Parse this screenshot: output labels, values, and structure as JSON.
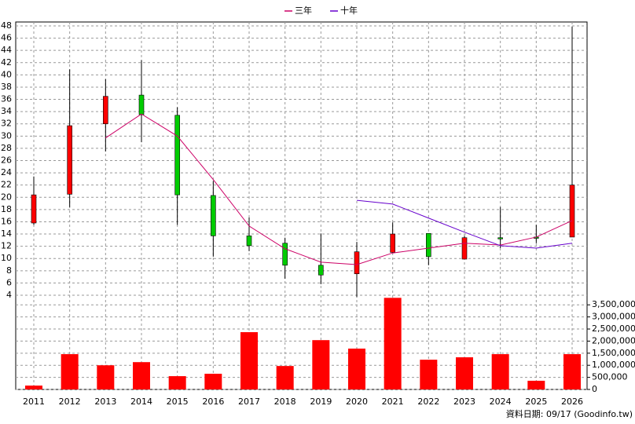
{
  "chart_data": {
    "type": "candlestick",
    "categories": [
      "2011",
      "2012",
      "2013",
      "2014",
      "2015",
      "2016",
      "2017",
      "2018",
      "2019",
      "2020",
      "2021",
      "2022",
      "2023",
      "2024",
      "2025",
      "2026"
    ],
    "open": [
      15.8,
      20.5,
      32.0,
      36.7,
      33.4,
      20.3,
      13.7,
      12.5,
      8.9,
      7.5,
      11.0,
      14.1,
      9.9,
      13.4,
      13.5,
      13.5
    ],
    "high": [
      23.4,
      40.9,
      39.3,
      42.4,
      34.7,
      22.7,
      16.7,
      13.4,
      14.1,
      12.7,
      15.9,
      14.1,
      13.7,
      18.4,
      15.5,
      47.9
    ],
    "low": [
      15.5,
      18.4,
      27.5,
      29.0,
      15.5,
      10.3,
      11.2,
      6.7,
      5.8,
      3.7,
      10.9,
      8.9,
      9.9,
      11.7,
      12.5,
      13.5
    ],
    "close": [
      20.4,
      31.7,
      36.5,
      33.5,
      20.4,
      13.7,
      12.1,
      8.9,
      7.3,
      11.1,
      14.0,
      10.3,
      13.4,
      13.2,
      13.3,
      22.0
    ],
    "up_color": "#ff0000",
    "down_color": "#00cc00",
    "series": [
      {
        "name": "三年",
        "color": "#cc0066",
        "values": [
          null,
          null,
          29.7,
          33.6,
          30.0,
          22.9,
          15.3,
          11.6,
          9.4,
          9.0,
          10.9,
          11.7,
          12.5,
          12.2,
          13.5,
          16.2
        ]
      },
      {
        "name": "十年",
        "color": "#6600cc",
        "values": [
          null,
          null,
          null,
          null,
          null,
          null,
          null,
          null,
          null,
          19.5,
          18.9,
          16.6,
          14.3,
          12.1,
          11.7,
          12.5
        ]
      }
    ],
    "volume": {
      "axis": "y2",
      "color": "#ff0000",
      "values": [
        160000,
        1460000,
        1000000,
        1130000,
        550000,
        650000,
        2370000,
        970000,
        2040000,
        1690000,
        3790000,
        1230000,
        1330000,
        1460000,
        360000,
        1460000
      ]
    },
    "ylim": [
      4,
      48
    ],
    "yticks": [
      4,
      6,
      8,
      10,
      12,
      14,
      16,
      18,
      20,
      22,
      24,
      26,
      28,
      30,
      32,
      34,
      36,
      38,
      40,
      42,
      44,
      46,
      48
    ],
    "y2lim": [
      0,
      3800000
    ],
    "y2ticks": [
      0,
      {
        "value": 500000,
        "label": "500,000"
      },
      {
        "value": 1000000,
        "label": "1,000,000"
      },
      {
        "value": 1500000,
        "label": "1,500,000"
      },
      {
        "value": 2000000,
        "label": "2,000,000"
      },
      {
        "value": 2500000,
        "label": "2,500,000"
      },
      {
        "value": 3000000,
        "label": "3,000,000"
      },
      {
        "value": 3500000,
        "label": "3,500,000"
      }
    ],
    "grid": true,
    "footnote": "資料日期: 09/17  (Goodinfo.tw)"
  }
}
